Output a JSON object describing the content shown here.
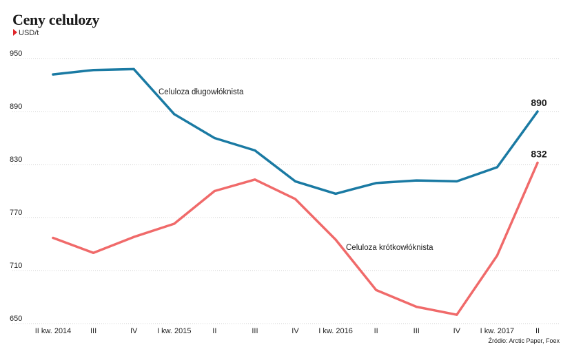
{
  "chart_data": {
    "type": "line",
    "title": "Ceny celulozy",
    "unit": "USD/t",
    "source": "Źródło: Arctic Paper, Foex",
    "categories": [
      "II kw. 2014",
      "III",
      "IV",
      "I kw. 2015",
      "II",
      "III",
      "IV",
      "I kw. 2016",
      "II",
      "III",
      "IV",
      "I kw. 2017",
      "II"
    ],
    "ylim": [
      650,
      950
    ],
    "yticks": [
      650,
      710,
      770,
      830,
      890,
      950
    ],
    "grid": true,
    "series": [
      {
        "name": "Celuloza długowłóknista",
        "color": "#1a7aa3",
        "values": [
          932,
          937,
          938,
          887,
          860,
          846,
          811,
          797,
          809,
          812,
          811,
          827,
          890
        ],
        "end_label": "890"
      },
      {
        "name": "Celuloza krótkowłóknista",
        "color": "#f06a6a",
        "values": [
          747,
          730,
          748,
          763,
          800,
          813,
          791,
          745,
          688,
          669,
          660,
          727,
          832
        ],
        "end_label": "832"
      }
    ]
  }
}
